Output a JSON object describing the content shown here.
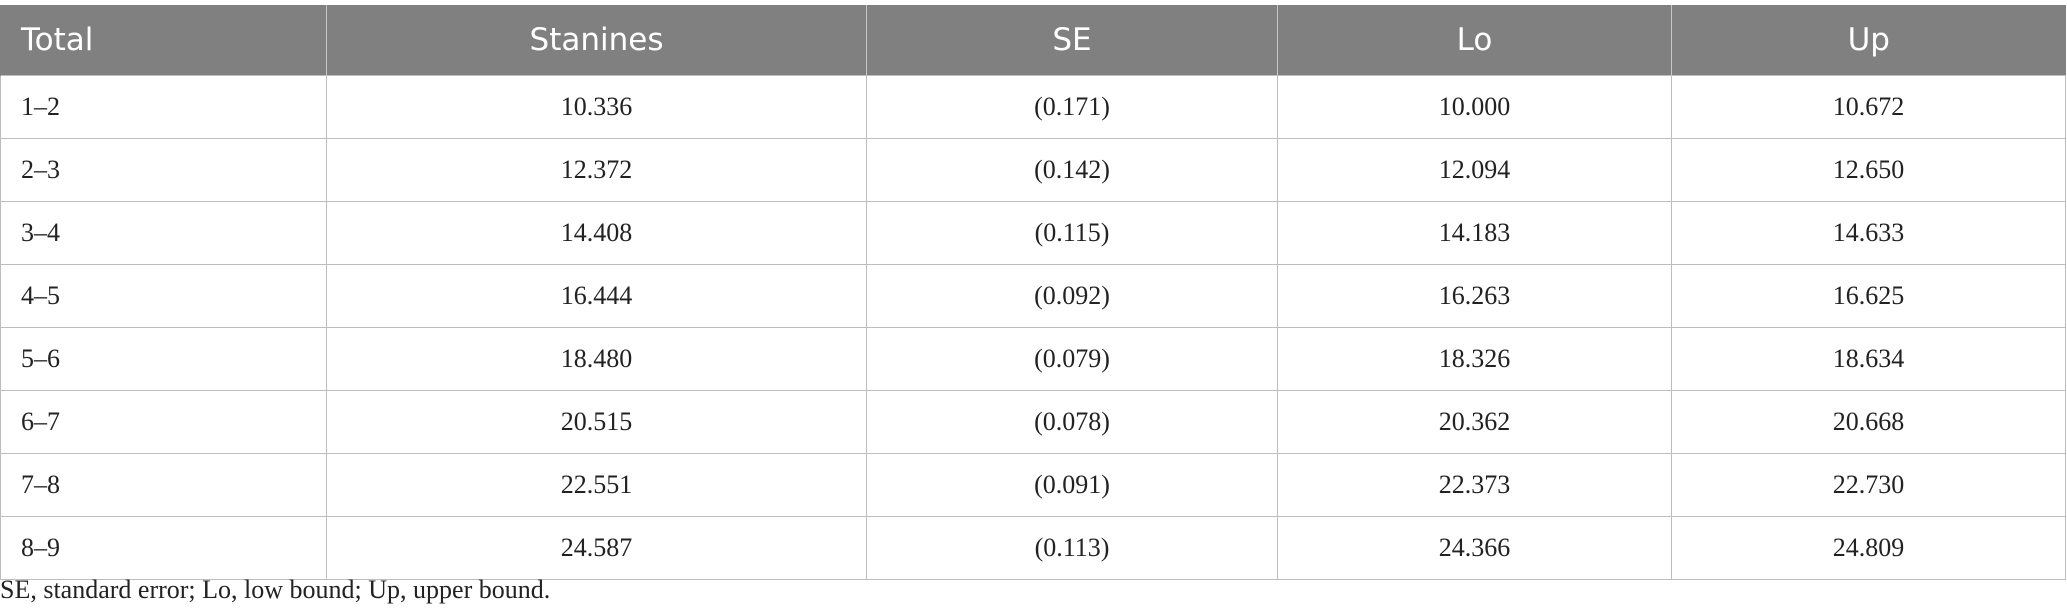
{
  "table": {
    "header": [
      "Total",
      "Stanines",
      "SE",
      "Lo",
      "Up"
    ],
    "rows": [
      [
        "1–2",
        "10.336",
        "(0.171)",
        "10.000",
        "10.672"
      ],
      [
        "2–3",
        "12.372",
        "(0.142)",
        "12.094",
        "12.650"
      ],
      [
        "3–4",
        "14.408",
        "(0.115)",
        "14.183",
        "14.633"
      ],
      [
        "4–5",
        "16.444",
        "(0.092)",
        "16.263",
        "16.625"
      ],
      [
        "5–6",
        "18.480",
        "(0.079)",
        "18.326",
        "18.634"
      ],
      [
        "6–7",
        "20.515",
        "(0.078)",
        "20.362",
        "20.668"
      ],
      [
        "7–8",
        "22.551",
        "(0.091)",
        "22.373",
        "22.730"
      ],
      [
        "8–9",
        "24.587",
        "(0.113)",
        "24.366",
        "24.809"
      ]
    ]
  },
  "footnote": "SE, standard error; Lo, low bound; Up, upper bound."
}
